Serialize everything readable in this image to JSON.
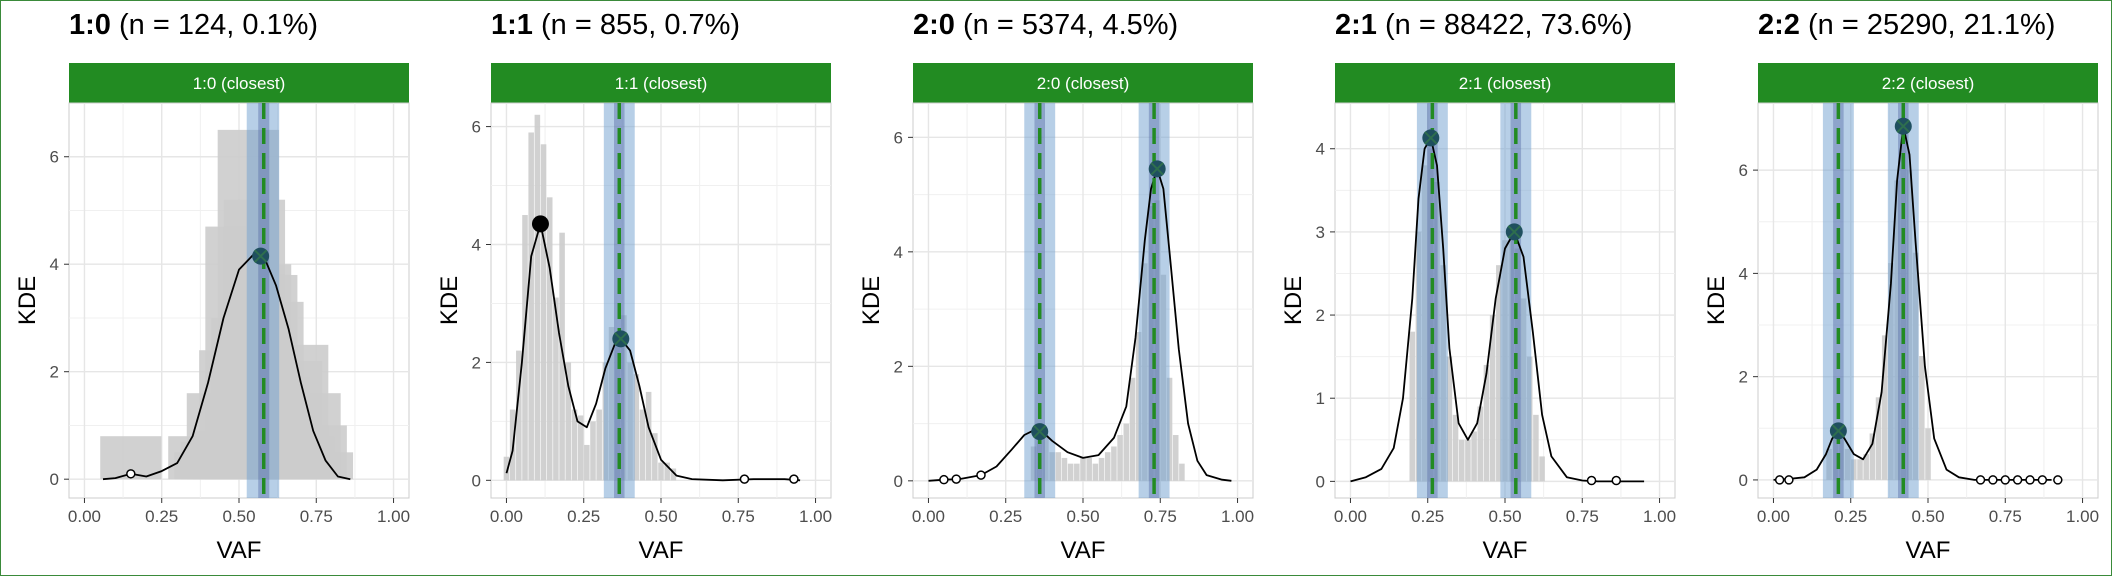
{
  "colors": {
    "strip": "#228B22",
    "strip_text": "#ffffff",
    "hist": "#cccccc",
    "kde_line": "#000000",
    "band": "#6f9fcf",
    "dashed": "#228B22",
    "match_point": "#1f4f5f",
    "grid": "#e6e6e6",
    "axis_text": "#4d4d4d"
  },
  "chart_data": [
    {
      "type": "line",
      "panel_label": "1:0",
      "subtitle": "(n = 124, 0.1%)",
      "strip_label": "1:0 (closest)",
      "xlabel": "VAF",
      "ylabel": "KDE",
      "xlim": [
        -0.05,
        1.05
      ],
      "ylim": [
        -0.35,
        7.0
      ],
      "x_ticks": [
        "0.00",
        "0.25",
        "0.50",
        "0.75",
        "1.00"
      ],
      "y_ticks": [
        0,
        2,
        4,
        6
      ],
      "grid": true,
      "kde": {
        "x": [
          0.06,
          0.1,
          0.15,
          0.2,
          0.25,
          0.3,
          0.35,
          0.4,
          0.45,
          0.5,
          0.55,
          0.58,
          0.62,
          0.66,
          0.7,
          0.74,
          0.78,
          0.82,
          0.86
        ],
        "y": [
          0.0,
          0.02,
          0.1,
          0.05,
          0.15,
          0.3,
          0.8,
          1.8,
          3.0,
          3.9,
          4.2,
          4.15,
          3.6,
          2.8,
          1.8,
          0.9,
          0.35,
          0.05,
          0.0
        ]
      },
      "histogram": {
        "x": [
          0.15,
          0.37,
          0.39,
          0.41,
          0.43,
          0.45,
          0.47,
          0.49,
          0.51,
          0.53,
          0.55,
          0.57,
          0.59,
          0.61,
          0.63,
          0.65,
          0.67,
          0.69,
          0.71,
          0.73,
          0.75,
          0.77
        ],
        "y": [
          0.8,
          0.8,
          0.5,
          0.7,
          1.6,
          0.9,
          2.4,
          4.7,
          3.0,
          6.5,
          5.2,
          4.0,
          3.8,
          3.3,
          1.9,
          1.6,
          2.2,
          2.5,
          0.8,
          1.6,
          1.0,
          0.5
        ]
      },
      "peaks": [
        {
          "x": 0.15,
          "y": 0.1,
          "style": "open"
        },
        {
          "x": 0.57,
          "y": 4.15,
          "style": "match"
        }
      ],
      "expected": [
        {
          "x": 0.58,
          "lo": 0.525,
          "hi": 0.63
        }
      ]
    },
    {
      "type": "line",
      "panel_label": "1:1",
      "subtitle": "(n = 855, 0.7%)",
      "strip_label": "1:1 (closest)",
      "xlabel": "VAF",
      "ylabel": "KDE",
      "xlim": [
        -0.05,
        1.05
      ],
      "ylim": [
        -0.3,
        6.4
      ],
      "x_ticks": [
        "0.00",
        "0.25",
        "0.50",
        "0.75",
        "1.00"
      ],
      "y_ticks": [
        0,
        2,
        4,
        6
      ],
      "grid": true,
      "kde": {
        "x": [
          0.0,
          0.02,
          0.05,
          0.08,
          0.11,
          0.14,
          0.17,
          0.2,
          0.23,
          0.26,
          0.29,
          0.32,
          0.35,
          0.37,
          0.4,
          0.43,
          0.46,
          0.5,
          0.55,
          0.6,
          0.7,
          0.8,
          0.9,
          0.95
        ],
        "y": [
          0.12,
          0.5,
          2.0,
          3.8,
          4.35,
          3.6,
          2.5,
          1.6,
          1.0,
          0.9,
          1.3,
          1.9,
          2.3,
          2.4,
          2.2,
          1.6,
          0.9,
          0.35,
          0.08,
          0.02,
          0.0,
          0.02,
          0.02,
          0.0
        ]
      },
      "histogram": {
        "x": [
          0.0,
          0.02,
          0.04,
          0.06,
          0.08,
          0.1,
          0.12,
          0.14,
          0.16,
          0.18,
          0.2,
          0.22,
          0.24,
          0.26,
          0.28,
          0.3,
          0.32,
          0.34,
          0.36,
          0.38,
          0.4,
          0.42,
          0.44,
          0.46,
          0.48,
          0.5,
          0.52,
          0.54
        ],
        "y": [
          0.4,
          1.2,
          2.2,
          4.5,
          5.9,
          6.2,
          5.7,
          4.8,
          3.1,
          4.2,
          2.0,
          1.2,
          1.1,
          0.6,
          1.0,
          1.2,
          2.0,
          2.6,
          2.5,
          2.8,
          2.0,
          1.8,
          1.2,
          1.5,
          0.8,
          0.3,
          0.3,
          0.2
        ]
      },
      "peaks": [
        {
          "x": 0.11,
          "y": 4.35,
          "style": "filled"
        },
        {
          "x": 0.37,
          "y": 2.4,
          "style": "match"
        },
        {
          "x": 0.77,
          "y": 0.02,
          "style": "open"
        },
        {
          "x": 0.93,
          "y": 0.02,
          "style": "open"
        }
      ],
      "expected": [
        {
          "x": 0.365,
          "lo": 0.315,
          "hi": 0.415
        }
      ]
    },
    {
      "type": "line",
      "panel_label": "2:0",
      "subtitle": "(n = 5374, 4.5%)",
      "strip_label": "2:0 (closest)",
      "xlabel": "VAF",
      "ylabel": "KDE",
      "xlim": [
        -0.05,
        1.05
      ],
      "ylim": [
        -0.3,
        6.6
      ],
      "x_ticks": [
        "0.00",
        "0.25",
        "0.50",
        "0.75",
        "1.00"
      ],
      "y_ticks": [
        0,
        2,
        4,
        6
      ],
      "grid": true,
      "kde": {
        "x": [
          0.0,
          0.05,
          0.1,
          0.17,
          0.22,
          0.27,
          0.31,
          0.34,
          0.37,
          0.4,
          0.45,
          0.5,
          0.55,
          0.6,
          0.64,
          0.67,
          0.7,
          0.72,
          0.74,
          0.76,
          0.78,
          0.81,
          0.84,
          0.87,
          0.9,
          0.95,
          0.98
        ],
        "y": [
          0.0,
          0.02,
          0.03,
          0.1,
          0.25,
          0.55,
          0.8,
          0.88,
          0.85,
          0.7,
          0.5,
          0.4,
          0.45,
          0.75,
          1.3,
          2.5,
          4.2,
          5.1,
          5.45,
          5.1,
          4.0,
          2.3,
          1.0,
          0.35,
          0.1,
          0.02,
          0.0
        ]
      },
      "histogram": {
        "x": [
          0.34,
          0.36,
          0.38,
          0.4,
          0.42,
          0.44,
          0.46,
          0.48,
          0.5,
          0.52,
          0.54,
          0.56,
          0.58,
          0.6,
          0.62,
          0.64,
          0.66,
          0.68,
          0.7,
          0.72,
          0.74,
          0.76,
          0.78,
          0.8,
          0.82
        ],
        "y": [
          0.6,
          0.9,
          0.8,
          0.5,
          0.5,
          0.4,
          0.3,
          0.3,
          0.4,
          0.4,
          0.3,
          0.4,
          0.5,
          0.6,
          0.8,
          1.0,
          1.8,
          2.6,
          3.8,
          4.8,
          4.9,
          3.6,
          1.8,
          0.8,
          0.3
        ]
      },
      "peaks": [
        {
          "x": 0.05,
          "y": 0.02,
          "style": "open"
        },
        {
          "x": 0.09,
          "y": 0.03,
          "style": "open"
        },
        {
          "x": 0.17,
          "y": 0.1,
          "style": "open"
        },
        {
          "x": 0.36,
          "y": 0.86,
          "style": "match"
        },
        {
          "x": 0.74,
          "y": 5.45,
          "style": "match"
        }
      ],
      "expected": [
        {
          "x": 0.36,
          "lo": 0.31,
          "hi": 0.41
        },
        {
          "x": 0.73,
          "lo": 0.68,
          "hi": 0.78
        }
      ]
    },
    {
      "type": "line",
      "panel_label": "2:1",
      "subtitle": "(n = 88422, 73.6%)",
      "strip_label": "2:1 (closest)",
      "xlabel": "VAF",
      "ylabel": "KDE",
      "xlim": [
        -0.05,
        1.05
      ],
      "ylim": [
        -0.2,
        4.55
      ],
      "x_ticks": [
        "0.00",
        "0.25",
        "0.50",
        "0.75",
        "1.00"
      ],
      "y_ticks": [
        0,
        1,
        2,
        3,
        4
      ],
      "grid": true,
      "kde": {
        "x": [
          0.0,
          0.05,
          0.1,
          0.14,
          0.17,
          0.2,
          0.22,
          0.24,
          0.26,
          0.28,
          0.3,
          0.32,
          0.35,
          0.38,
          0.41,
          0.44,
          0.47,
          0.5,
          0.53,
          0.56,
          0.59,
          0.62,
          0.65,
          0.7,
          0.75,
          0.8,
          0.85,
          0.9,
          0.95
        ],
        "y": [
          0.0,
          0.05,
          0.15,
          0.4,
          1.0,
          2.2,
          3.4,
          4.0,
          4.13,
          3.8,
          2.8,
          1.6,
          0.7,
          0.5,
          0.7,
          1.3,
          2.2,
          2.8,
          3.0,
          2.7,
          1.8,
          0.8,
          0.3,
          0.05,
          0.01,
          0.0,
          0.0,
          0.0,
          0.0
        ]
      },
      "histogram": {
        "x": [
          0.2,
          0.22,
          0.24,
          0.26,
          0.28,
          0.3,
          0.32,
          0.34,
          0.36,
          0.38,
          0.4,
          0.42,
          0.44,
          0.46,
          0.48,
          0.5,
          0.52,
          0.54,
          0.56,
          0.58,
          0.6,
          0.62
        ],
        "y": [
          1.8,
          3.0,
          3.8,
          4.0,
          3.6,
          2.6,
          1.5,
          0.8,
          0.5,
          0.5,
          0.6,
          0.9,
          1.4,
          2.0,
          2.6,
          2.9,
          3.0,
          2.8,
          2.2,
          1.5,
          0.8,
          0.3
        ]
      },
      "peaks": [
        {
          "x": 0.26,
          "y": 4.13,
          "style": "match"
        },
        {
          "x": 0.53,
          "y": 3.0,
          "style": "match"
        },
        {
          "x": 0.78,
          "y": 0.01,
          "style": "open"
        },
        {
          "x": 0.86,
          "y": 0.01,
          "style": "open"
        }
      ],
      "expected": [
        {
          "x": 0.265,
          "lo": 0.215,
          "hi": 0.315
        },
        {
          "x": 0.535,
          "lo": 0.485,
          "hi": 0.585
        }
      ]
    },
    {
      "type": "line",
      "panel_label": "2:2",
      "subtitle": "(n = 25290, 21.1%)",
      "strip_label": "2:2 (closest)",
      "xlabel": "VAF",
      "ylabel": "KDE",
      "xlim": [
        -0.05,
        1.05
      ],
      "ylim": [
        -0.35,
        7.3
      ],
      "x_ticks": [
        "0.00",
        "0.25",
        "0.50",
        "0.75",
        "1.00"
      ],
      "y_ticks": [
        0,
        2,
        4,
        6
      ],
      "grid": true,
      "kde": {
        "x": [
          0.0,
          0.05,
          0.1,
          0.14,
          0.17,
          0.19,
          0.21,
          0.23,
          0.26,
          0.29,
          0.32,
          0.35,
          0.38,
          0.4,
          0.42,
          0.44,
          0.46,
          0.49,
          0.52,
          0.56,
          0.6,
          0.65,
          0.7,
          0.8,
          0.9
        ],
        "y": [
          0.0,
          0.02,
          0.05,
          0.2,
          0.5,
          0.8,
          0.95,
          0.8,
          0.5,
          0.4,
          0.7,
          1.7,
          3.8,
          5.8,
          6.85,
          6.3,
          4.6,
          2.2,
          0.8,
          0.2,
          0.05,
          0.0,
          0.0,
          0.0,
          0.0
        ]
      },
      "histogram": {
        "x": [
          0.18,
          0.2,
          0.22,
          0.24,
          0.26,
          0.28,
          0.3,
          0.32,
          0.34,
          0.36,
          0.38,
          0.4,
          0.42,
          0.44,
          0.46,
          0.48,
          0.5
        ],
        "y": [
          0.6,
          0.9,
          0.8,
          0.6,
          0.4,
          0.4,
          0.5,
          0.9,
          1.6,
          2.8,
          4.2,
          5.8,
          6.6,
          6.0,
          4.4,
          2.4,
          1.0
        ]
      },
      "peaks": [
        {
          "x": 0.02,
          "y": 0.0,
          "style": "open"
        },
        {
          "x": 0.05,
          "y": 0.0,
          "style": "open"
        },
        {
          "x": 0.21,
          "y": 0.95,
          "style": "match"
        },
        {
          "x": 0.42,
          "y": 6.85,
          "style": "match"
        },
        {
          "x": 0.67,
          "y": 0.0,
          "style": "open"
        },
        {
          "x": 0.71,
          "y": 0.0,
          "style": "open"
        },
        {
          "x": 0.75,
          "y": 0.0,
          "style": "open"
        },
        {
          "x": 0.79,
          "y": 0.0,
          "style": "open"
        },
        {
          "x": 0.83,
          "y": 0.0,
          "style": "open"
        },
        {
          "x": 0.87,
          "y": 0.0,
          "style": "open"
        },
        {
          "x": 0.92,
          "y": 0.0,
          "style": "open"
        }
      ],
      "expected": [
        {
          "x": 0.21,
          "lo": 0.16,
          "hi": 0.26
        },
        {
          "x": 0.42,
          "lo": 0.37,
          "hi": 0.47
        }
      ]
    }
  ]
}
